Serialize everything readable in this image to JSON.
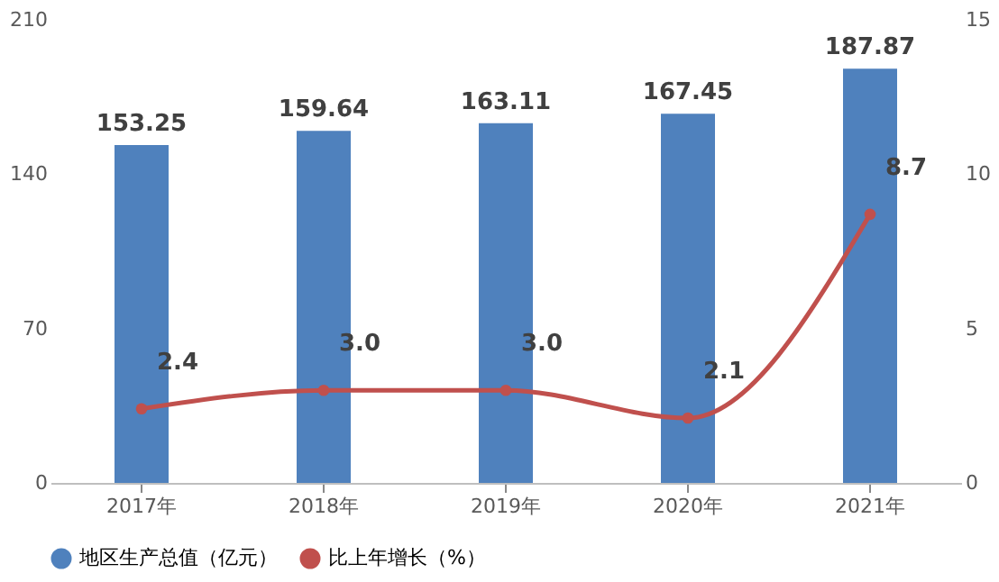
{
  "chart_data": {
    "type": "bar",
    "categories": [
      "2017年",
      "2018年",
      "2019年",
      "2020年",
      "2021年"
    ],
    "series": [
      {
        "name": "地区生产总值（亿元）",
        "color": "#4f81bd",
        "values": [
          153.25,
          159.64,
          163.11,
          167.45,
          187.87
        ]
      },
      {
        "name": "比上年增长（%）",
        "type": "line",
        "axis": "y2",
        "color": "#c0504d",
        "values": [
          2.4,
          3.0,
          3.0,
          2.1,
          8.7
        ],
        "value_labels": [
          "2.4",
          "3.0",
          "3.0",
          "2.1",
          "8.7"
        ]
      }
    ],
    "ylim": [
      0,
      210
    ],
    "yticks": [
      0,
      70,
      140,
      210
    ],
    "y2lim": [
      0,
      15
    ],
    "y2ticks": [
      0,
      5,
      10,
      15
    ],
    "data_labels": true,
    "grid": false,
    "legend": "bottom",
    "marker": "circle",
    "line_style": "solid"
  }
}
